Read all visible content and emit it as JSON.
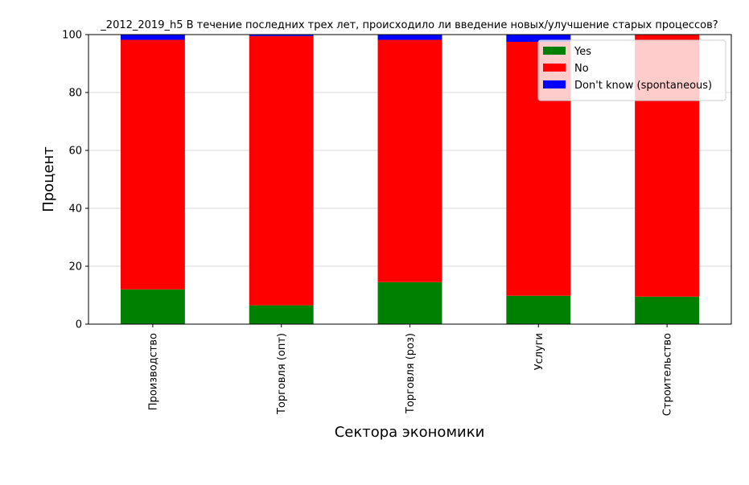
{
  "chart_data": {
    "type": "bar",
    "stacked": true,
    "title": "_2012_2019_h5 В течение последних трех лет, происходило ли введение новых/улучшение старых процессов?",
    "xlabel": "Сектора экономики",
    "ylabel": "Процент",
    "ylim": [
      0,
      100
    ],
    "yticks": [
      0,
      20,
      40,
      60,
      80,
      100
    ],
    "grid": true,
    "legend_position": "top-right",
    "categories": [
      "Производство",
      "Торговля (опт)",
      "Торговля (роз)",
      "Услуги",
      "Строительство"
    ],
    "series": [
      {
        "name": "Yes",
        "color": "#008000",
        "values": [
          12.0,
          6.5,
          14.5,
          9.8,
          9.5
        ]
      },
      {
        "name": "No",
        "color": "#ff0000",
        "values": [
          86.2,
          93.0,
          83.7,
          87.7,
          90.5
        ]
      },
      {
        "name": "Don't know (spontaneous)",
        "color": "#0000ff",
        "values": [
          1.8,
          0.5,
          1.8,
          2.5,
          0.0
        ]
      }
    ]
  }
}
